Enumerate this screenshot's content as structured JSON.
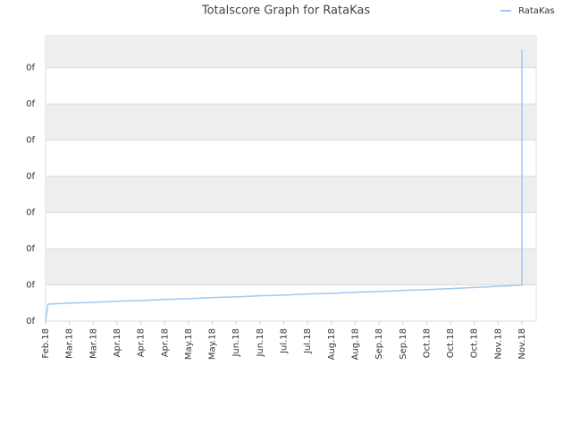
{
  "chart_data": {
    "type": "line",
    "title": "Totalscore Graph for RataKas",
    "x": [
      0,
      0.1,
      1,
      2,
      3,
      4,
      5,
      6,
      7,
      8,
      9,
      10,
      11,
      12,
      13,
      14,
      15,
      16,
      17,
      18,
      19,
      20,
      20
    ],
    "series": [
      {
        "name": "RataKas",
        "color": "#a0c8f0",
        "values": [
          0,
          0.47,
          0.5,
          0.52,
          0.55,
          0.57,
          0.6,
          0.62,
          0.65,
          0.67,
          0.7,
          0.72,
          0.75,
          0.77,
          0.8,
          0.82,
          0.85,
          0.87,
          0.9,
          0.93,
          0.96,
          1.0,
          7.5
        ]
      }
    ],
    "xlim": [
      0,
      20.6
    ],
    "xticks": [
      {
        "value": 0,
        "label": "Feb.18"
      },
      {
        "value": 1,
        "label": "Mar.18"
      },
      {
        "value": 2,
        "label": "Mar.18"
      },
      {
        "value": 3,
        "label": "Apr.18"
      },
      {
        "value": 4,
        "label": "Apr.18"
      },
      {
        "value": 5,
        "label": "Apr.18"
      },
      {
        "value": 6,
        "label": "May.18"
      },
      {
        "value": 7,
        "label": "May.18"
      },
      {
        "value": 8,
        "label": "Jun.18"
      },
      {
        "value": 9,
        "label": "Jun.18"
      },
      {
        "value": 10,
        "label": "Jul.18"
      },
      {
        "value": 11,
        "label": "Jul.18"
      },
      {
        "value": 12,
        "label": "Aug.18"
      },
      {
        "value": 13,
        "label": "Aug.18"
      },
      {
        "value": 14,
        "label": "Sep.18"
      },
      {
        "value": 15,
        "label": "Sep.18"
      },
      {
        "value": 16,
        "label": "Oct.18"
      },
      {
        "value": 17,
        "label": "Oct.18"
      },
      {
        "value": 18,
        "label": "Oct.18"
      },
      {
        "value": 19,
        "label": "Nov.18"
      },
      {
        "value": 20,
        "label": "Nov.18"
      }
    ],
    "ylim": [
      0,
      7.88
    ],
    "yticks": [
      {
        "value": 0,
        "label": "0f"
      },
      {
        "value": 1,
        "label": "0f"
      },
      {
        "value": 2,
        "label": "0f"
      },
      {
        "value": 3,
        "label": "0f"
      },
      {
        "value": 4,
        "label": "0f"
      },
      {
        "value": 5,
        "label": "0f"
      },
      {
        "value": 6,
        "label": "0f"
      },
      {
        "value": 7,
        "label": "0f"
      }
    ],
    "grid": true,
    "legend": "top-right"
  }
}
